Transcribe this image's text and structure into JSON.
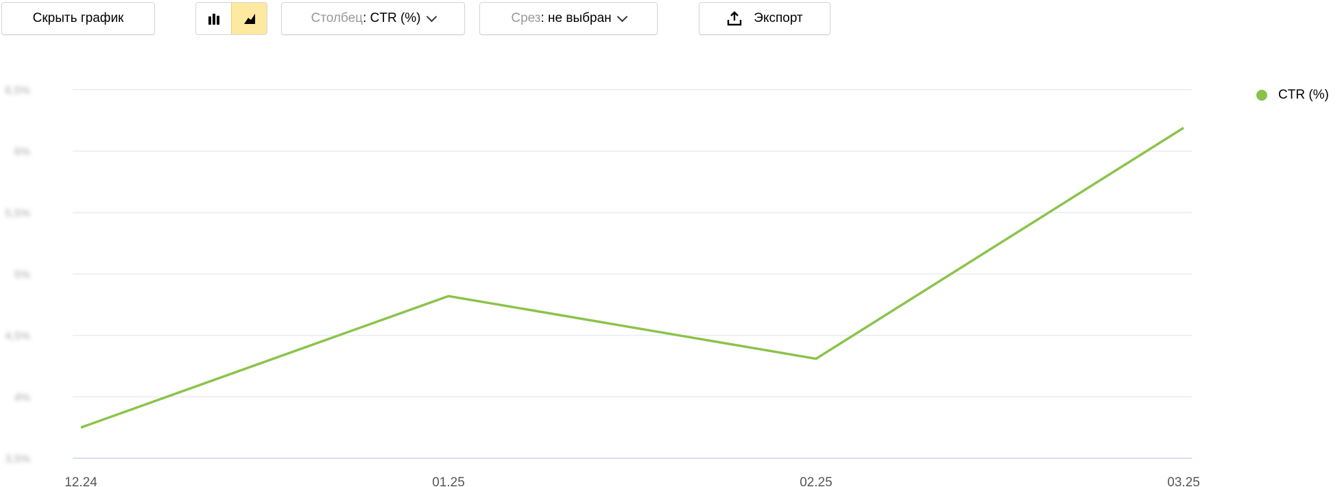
{
  "toolbar": {
    "hide_chart": "Скрыть график",
    "chart_type_icons": [
      "bar-chart-icon",
      "area-chart-icon"
    ],
    "active_chart_type": "area",
    "column_label": "Столбец",
    "column_value": ": CTR (%)",
    "slice_label": "Срез",
    "slice_value": ": не выбран",
    "export": "Экспорт"
  },
  "chart_data": {
    "type": "line",
    "x": [
      "12.24",
      "01.25",
      "02.25",
      "03.25"
    ],
    "series": [
      {
        "name": "CTR (%)",
        "color": "#8bc34a",
        "values": [
          3.75,
          4.82,
          4.31,
          6.19
        ]
      }
    ],
    "yticks": [
      "6,5%",
      "6%",
      "5,5%",
      "5%",
      "4,5%",
      "4%",
      "3,5%"
    ],
    "ylim": [
      3.5,
      6.5
    ],
    "grid": true,
    "legend": "right"
  }
}
